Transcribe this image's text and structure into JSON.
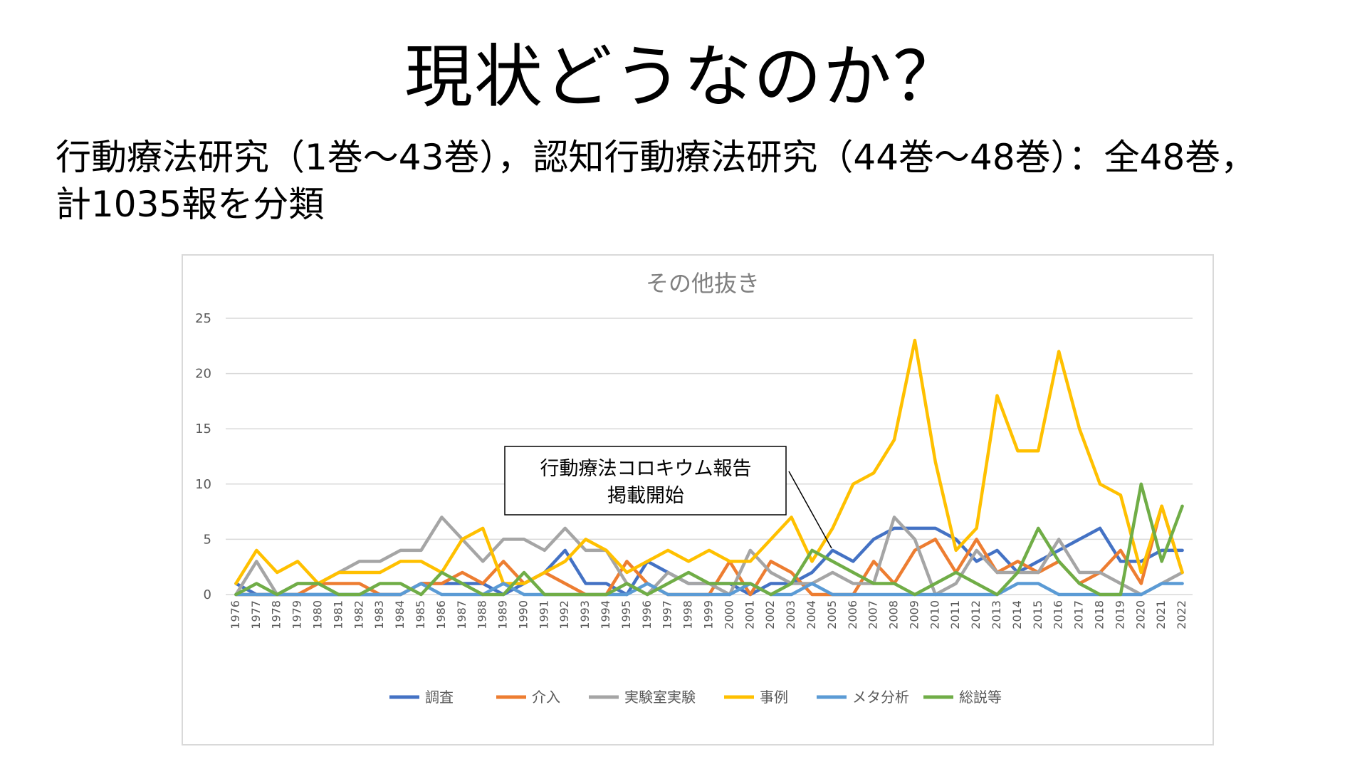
{
  "slide": {
    "title": "現状どうなのか？",
    "subtitle_line1": "行動療法研究（1巻～43巻），認知行動療法研究（44巻～48巻）：全48巻，",
    "subtitle_line2": "計1035報を分類"
  },
  "annotation": {
    "line1": "行動療法コロキウム報告",
    "line2": "掲載開始"
  },
  "chart_data": {
    "type": "line",
    "title": "その他抜き",
    "xlabel": "",
    "ylabel": "",
    "ylim": [
      0,
      25
    ],
    "yticks": [
      0,
      5,
      10,
      15,
      20,
      25
    ],
    "grid": true,
    "legend_position": "bottom",
    "categories": [
      "1976",
      "1977",
      "1978",
      "1979",
      "1980",
      "1981",
      "1982",
      "1983",
      "1984",
      "1985",
      "1986",
      "1987",
      "1988",
      "1989",
      "1990",
      "1991",
      "1992",
      "1993",
      "1994",
      "1995",
      "1996",
      "1997",
      "1998",
      "1999",
      "2000",
      "2001",
      "2002",
      "2003",
      "2004",
      "2005",
      "2006",
      "2007",
      "2008",
      "2009",
      "2010",
      "2011",
      "2012",
      "2013",
      "2014",
      "2015",
      "2016",
      "2017",
      "2018",
      "2019",
      "2020",
      "2021",
      "2022"
    ],
    "series": [
      {
        "name": "調査",
        "color": "#4472C4",
        "values": [
          1,
          0,
          0,
          0,
          0,
          0,
          0,
          0,
          0,
          1,
          1,
          1,
          1,
          0,
          1,
          2,
          4,
          1,
          1,
          0,
          3,
          2,
          1,
          1,
          1,
          0,
          1,
          1,
          2,
          4,
          3,
          5,
          6,
          6,
          6,
          5,
          3,
          4,
          2,
          3,
          4,
          5,
          6,
          3,
          3,
          4,
          4
        ]
      },
      {
        "name": "介入",
        "color": "#ED7D31",
        "values": [
          0,
          0,
          0,
          0,
          1,
          1,
          1,
          0,
          0,
          1,
          1,
          2,
          1,
          3,
          1,
          2,
          1,
          0,
          0,
          3,
          1,
          0,
          0,
          0,
          3,
          0,
          3,
          2,
          0,
          0,
          0,
          3,
          1,
          4,
          5,
          2,
          5,
          2,
          3,
          2,
          3,
          1,
          2,
          4,
          1,
          8,
          2
        ]
      },
      {
        "name": "実験室実験",
        "color": "#A5A5A5",
        "values": [
          0,
          3,
          0,
          1,
          1,
          2,
          3,
          3,
          4,
          4,
          7,
          5,
          3,
          5,
          5,
          4,
          6,
          4,
          4,
          1,
          0,
          2,
          1,
          1,
          0,
          4,
          2,
          1,
          1,
          2,
          1,
          1,
          7,
          5,
          0,
          1,
          4,
          2,
          2,
          2,
          5,
          2,
          2,
          1,
          0,
          1,
          2
        ]
      },
      {
        "name": "事例",
        "color": "#FFC000",
        "values": [
          1,
          4,
          2,
          3,
          1,
          2,
          2,
          2,
          3,
          3,
          2,
          5,
          6,
          1,
          1,
          2,
          3,
          5,
          4,
          2,
          3,
          4,
          3,
          4,
          3,
          3,
          5,
          7,
          3,
          6,
          10,
          11,
          14,
          23,
          12,
          4,
          6,
          18,
          13,
          13,
          22,
          15,
          10,
          9,
          2,
          8,
          2
        ]
      },
      {
        "name": "メタ分析",
        "color": "#5B9BD5",
        "values": [
          0,
          0,
          0,
          0,
          0,
          0,
          0,
          0,
          0,
          1,
          0,
          0,
          0,
          1,
          0,
          0,
          0,
          0,
          0,
          0,
          1,
          0,
          0,
          0,
          0,
          1,
          0,
          0,
          1,
          0,
          0,
          0,
          0,
          0,
          0,
          0,
          0,
          0,
          1,
          1,
          0,
          0,
          0,
          0,
          0,
          1,
          1
        ]
      },
      {
        "name": "総説等",
        "color": "#70AD47",
        "values": [
          0,
          1,
          0,
          1,
          1,
          0,
          0,
          1,
          1,
          0,
          2,
          1,
          0,
          0,
          2,
          0,
          0,
          0,
          0,
          1,
          0,
          1,
          2,
          1,
          1,
          1,
          0,
          1,
          4,
          3,
          2,
          1,
          1,
          0,
          1,
          2,
          1,
          0,
          2,
          6,
          3,
          1,
          0,
          0,
          10,
          3,
          8
        ]
      }
    ]
  }
}
